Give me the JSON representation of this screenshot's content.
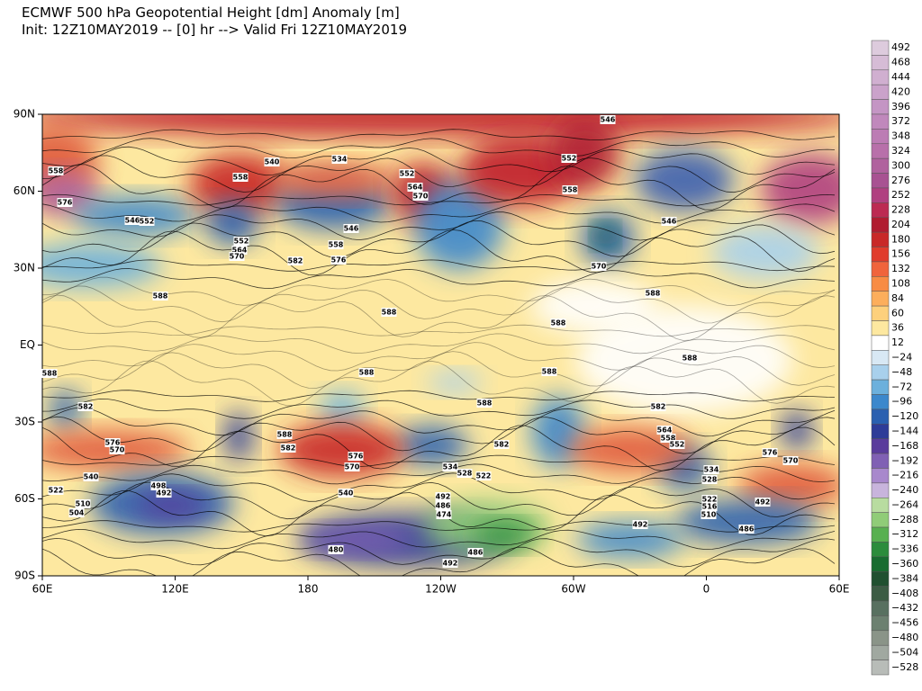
{
  "header": {
    "title_line1": "ECMWF 500 hPa Geopotential Height [dm] Anomaly [m]",
    "title_line2": "Init: 12Z10MAY2019 -- [0] hr --> Valid Fri 12Z10MAY2019"
  },
  "map": {
    "lat_labels": [
      "90N",
      "60N",
      "30N",
      "EQ",
      "30S",
      "60S",
      "90S"
    ],
    "lon_labels": [
      "60E",
      "120E",
      "180",
      "120W",
      "60W",
      "0",
      "60E"
    ],
    "contour_labels": [
      "546",
      "534",
      "540",
      "558",
      "552",
      "564",
      "570",
      "552",
      "558",
      "558",
      "576",
      "546",
      "552",
      "552",
      "564",
      "570",
      "558",
      "546",
      "582",
      "576",
      "570",
      "546",
      "588",
      "588",
      "588",
      "588",
      "588",
      "588",
      "588",
      "588",
      "588",
      "582",
      "576",
      "570",
      "588",
      "582",
      "576",
      "570",
      "582",
      "534",
      "528",
      "522",
      "540",
      "540",
      "522",
      "498",
      "492",
      "510",
      "504",
      "492",
      "486",
      "474",
      "492",
      "492",
      "486",
      "480",
      "486",
      "492",
      "582",
      "564",
      "558",
      "552",
      "534",
      "528",
      "522",
      "516",
      "510",
      "576",
      "570"
    ]
  },
  "colorbar": {
    "labels": [
      "492",
      "468",
      "444",
      "420",
      "396",
      "372",
      "348",
      "324",
      "300",
      "276",
      "252",
      "228",
      "204",
      "180",
      "156",
      "132",
      "108",
      "84",
      "60",
      "36",
      "12",
      "−24",
      "−48",
      "−72",
      "−96",
      "−120",
      "−144",
      "−168",
      "−192",
      "−216",
      "−240",
      "−264",
      "−288",
      "−312",
      "−336",
      "−360",
      "−384",
      "−408",
      "−432",
      "−456",
      "−480",
      "−504",
      "−528"
    ],
    "colors": [
      "#ddcbdd",
      "#d6bcd6",
      "#d0afd0",
      "#caa2ca",
      "#c495c4",
      "#c088bc",
      "#bc7cb4",
      "#b870aa",
      "#b0629e",
      "#a85292",
      "#b04080",
      "#bc2a52",
      "#b01c30",
      "#c82828",
      "#e03c2c",
      "#f0643c",
      "#f88c44",
      "#fcae5c",
      "#fdd07c",
      "#fde8a0",
      "#ffffff",
      "#d8e8f4",
      "#a8d0ec",
      "#6cb0dc",
      "#3c88cc",
      "#2a60b0",
      "#2e3c98",
      "#5a3c9c",
      "#8060b4",
      "#a888cc",
      "#c8b4dc",
      "#b8dca0",
      "#90cc78",
      "#58b050",
      "#2c8c3c",
      "#186c30",
      "#205030",
      "#3c5c44",
      "#587060",
      "#6c8070",
      "#8a9488",
      "#a0a8a0",
      "#b8bcb8"
    ]
  }
}
